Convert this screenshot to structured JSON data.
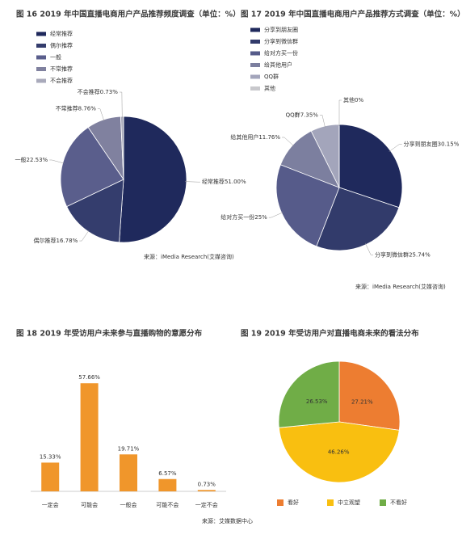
{
  "chart_data": [
    {
      "type": "pie",
      "title": "图 16 2019 年中国直播电商用户产品推荐频度调查（单位：%）",
      "categories": [
        "经常推荐",
        "偶尔推荐",
        "一般",
        "不常推荐",
        "不会推荐"
      ],
      "values": [
        51.0,
        16.78,
        22.53,
        8.76,
        0.73
      ],
      "value_labels": [
        "51.00%",
        "16.78%",
        "22.53%",
        "8.76%",
        "0.73%"
      ],
      "colors": [
        "#1f295c",
        "#343d6d",
        "#5a5e8c",
        "#80819f",
        "#a9aabb"
      ],
      "source": "来源：iMedia Research(艾媒咨询)"
    },
    {
      "type": "pie",
      "title": "图 17 2019 年中国直播电商用户产品推荐方式调查（单位：%）",
      "categories": [
        "分享到朋友圈",
        "分享到微信群",
        "给对方买一份",
        "给其他用户",
        "QQ群",
        "其他"
      ],
      "values": [
        30.15,
        25.74,
        25,
        11.76,
        7.35,
        0
      ],
      "value_labels": [
        "30.15%",
        "25.74%",
        "25%",
        "11.76%",
        "7.35%",
        "0%"
      ],
      "colors": [
        "#1f295c",
        "#323b6b",
        "#565b8a",
        "#7c7f9f",
        "#a3a5bb",
        "#c8c8cc"
      ],
      "source": "来源：iMedia Research(艾媒咨询)"
    },
    {
      "type": "bar",
      "title": "图 18  2019 年受访用户未来参与直播购物的意愿分布",
      "categories": [
        "一定会",
        "可能会",
        "一般会",
        "可能不会",
        "一定不会"
      ],
      "values": [
        15.33,
        57.66,
        19.71,
        6.57,
        0.73
      ],
      "value_labels": [
        "15.33%",
        "57.66%",
        "19.71%",
        "6.57%",
        "0.73%"
      ],
      "color": "#f0962b",
      "source": "来源：艾媒数据中心"
    },
    {
      "type": "pie",
      "title": "图 19  2019 年受访用户对直播电商未来的看法分布",
      "categories": [
        "看好",
        "中立观望",
        "不看好"
      ],
      "values": [
        27.21,
        46.26,
        26.53
      ],
      "value_labels": [
        "27.21%",
        "46.26%",
        "26.53%"
      ],
      "colors": [
        "#ed7d31",
        "#f9bf10",
        "#70ad47"
      ]
    }
  ]
}
